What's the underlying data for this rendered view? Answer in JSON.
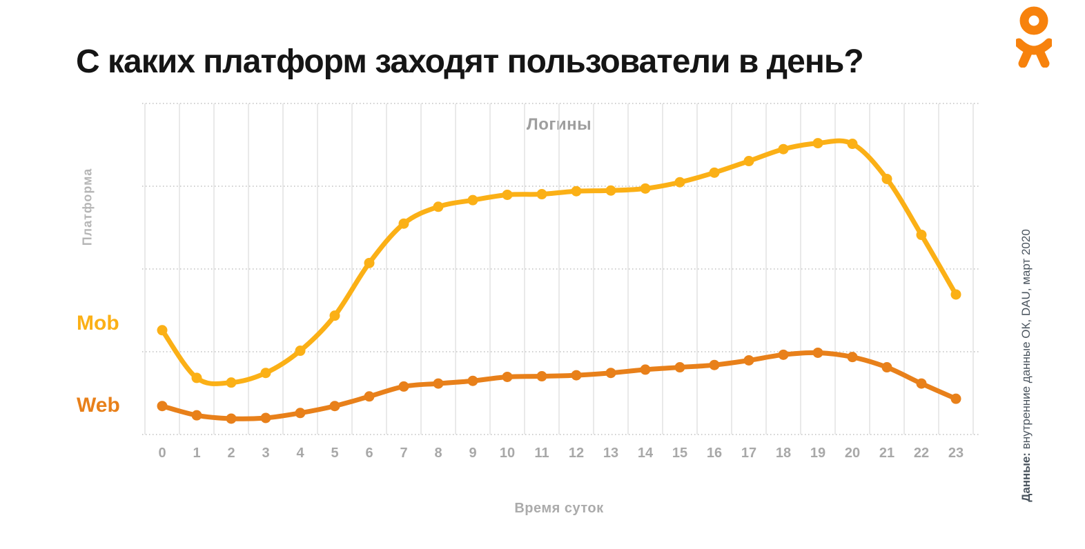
{
  "page": {
    "title": "С каких платформ заходят пользователи в день?"
  },
  "logo": {
    "name": "ok-odnoklassniki-logo",
    "color": "#F7820D"
  },
  "source_note": {
    "prefix": "Данные:",
    "text": " внутренние данные ОК, DAU, март 2020"
  },
  "chart_data": {
    "type": "line",
    "title": "Логины",
    "xlabel": "Время суток",
    "ylabel": "Платформа",
    "x": [
      0,
      1,
      2,
      3,
      4,
      5,
      6,
      7,
      8,
      9,
      10,
      11,
      12,
      13,
      14,
      15,
      16,
      17,
      18,
      19,
      20,
      21,
      22,
      23
    ],
    "units": "relative logins, 0–100 scale estimated from pixel positions (no numeric y-axis shown)",
    "ylim": [
      0,
      100
    ],
    "grid": {
      "vertical": "solid",
      "horizontal": "dotted",
      "h_lines": 5
    },
    "legend_position": "left-of-curves",
    "series": [
      {
        "name": "Mob",
        "color": "#FBB016",
        "values": [
          31.5,
          17.1,
          15.7,
          18.6,
          25.3,
          35.9,
          51.8,
          63.7,
          68.8,
          70.8,
          72.4,
          72.6,
          73.5,
          73.7,
          74.3,
          76.2,
          79.1,
          82.6,
          86.2,
          88.0,
          87.8,
          77.2,
          60.3,
          42.3
        ]
      },
      {
        "name": "Web",
        "color": "#E8801A",
        "values": [
          8.6,
          5.8,
          4.8,
          5.0,
          6.5,
          8.6,
          11.5,
          14.5,
          15.4,
          16.2,
          17.4,
          17.6,
          17.9,
          18.6,
          19.6,
          20.3,
          21.0,
          22.4,
          24.1,
          24.7,
          23.4,
          20.3,
          15.4,
          10.8
        ]
      }
    ],
    "style": {
      "grid_color": "#e2e2e2",
      "dotted_color": "#bfbfbf",
      "line_width": 7,
      "dot_radius": 7.5
    }
  }
}
